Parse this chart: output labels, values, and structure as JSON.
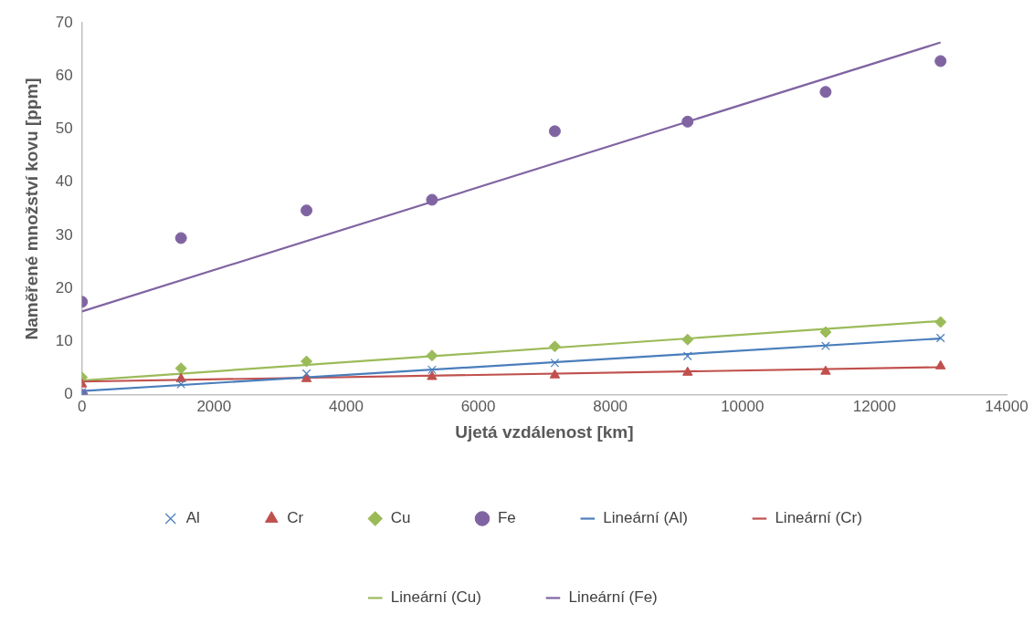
{
  "chart_data": {
    "type": "scatter",
    "xlabel": "Ujetá vzdálenost [km]",
    "ylabel": "Naměřené množství kovu [ppm]",
    "xlim": [
      0,
      14000
    ],
    "xticks": [
      0,
      2000,
      4000,
      6000,
      8000,
      10000,
      12000,
      14000
    ],
    "ylim": [
      0,
      70
    ],
    "yticks": [
      0,
      10,
      20,
      30,
      40,
      50,
      60,
      70
    ],
    "grid": false,
    "legend": "bottom",
    "series": [
      {
        "name": "Al",
        "type": "scatter",
        "marker": "cross",
        "color": "#4a7ebb",
        "x": [
          0,
          0,
          1500,
          3400,
          5300,
          7160,
          9170,
          11260,
          13000
        ],
        "values": [
          0,
          0.5,
          2.0,
          4.0,
          4.7,
          6.0,
          7.3,
          9.2,
          10.7
        ]
      },
      {
        "name": "Cr",
        "type": "scatter",
        "marker": "triangle",
        "color": "#c0504d",
        "x": [
          0,
          1500,
          3400,
          5300,
          7160,
          9170,
          11260,
          13000
        ],
        "values": [
          2.0,
          3.0,
          3.0,
          3.4,
          3.7,
          4.2,
          4.4,
          5.4
        ]
      },
      {
        "name": "Cu",
        "type": "scatter",
        "marker": "diamond",
        "color": "#9bbb59",
        "x": [
          0,
          1500,
          3400,
          5300,
          7160,
          9170,
          11260,
          13000
        ],
        "values": [
          3.3,
          5.0,
          6.3,
          7.4,
          9.1,
          10.4,
          11.8,
          13.7
        ]
      },
      {
        "name": "Fe",
        "type": "scatter",
        "marker": "circle",
        "color": "#8064a2",
        "x": [
          0,
          0,
          1500,
          3400,
          5300,
          7160,
          9170,
          11260,
          13000
        ],
        "values": [
          0,
          17.5,
          29.5,
          34.7,
          36.7,
          49.6,
          51.4,
          57.0,
          62.8
        ]
      },
      {
        "name": "Lineární (Al)",
        "type": "line",
        "marker": "none",
        "color": "#4a7ebb",
        "x": [
          0,
          13000
        ],
        "values": [
          0.7,
          10.6
        ]
      },
      {
        "name": "Lineární (Cr)",
        "type": "line",
        "marker": "none",
        "color": "#c0504d",
        "x": [
          0,
          13000
        ],
        "values": [
          2.5,
          5.2
        ]
      },
      {
        "name": "Lineární (Cu)",
        "type": "line",
        "marker": "none",
        "color": "#9bbb59",
        "x": [
          0,
          13000
        ],
        "values": [
          2.7,
          13.9
        ]
      },
      {
        "name": "Lineární (Fe)",
        "type": "line",
        "marker": "none",
        "color": "#8064a2",
        "x": [
          0,
          13000
        ],
        "values": [
          15.7,
          66.3
        ]
      }
    ]
  }
}
